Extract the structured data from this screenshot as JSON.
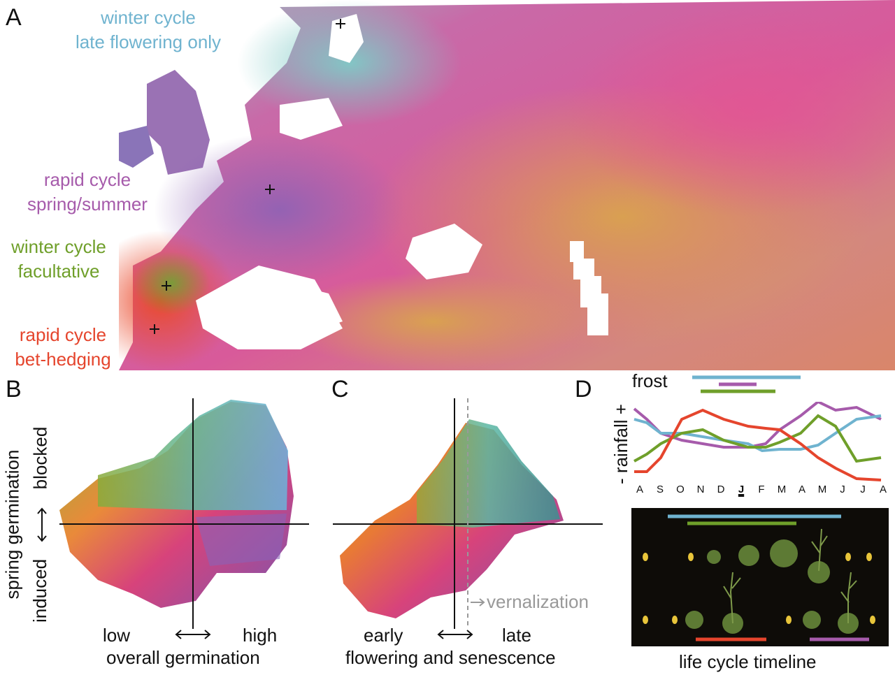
{
  "panels": {
    "a": "A",
    "b": "B",
    "c": "C",
    "d": "D"
  },
  "map": {
    "labels": [
      {
        "line1": "winter cycle",
        "line2": "late flowering only",
        "color": "#6fb3cf"
      },
      {
        "line1": "rapid cycle",
        "line2": "spring/summer",
        "color": "#a65bab"
      },
      {
        "line1": "winter cycle",
        "line2": "facultative",
        "color": "#6f9f2a"
      },
      {
        "line1": "rapid cycle",
        "line2": "bet-hedging",
        "color": "#e5452d"
      }
    ]
  },
  "scatter_b": {
    "y_axis": {
      "top": "blocked",
      "bottom": "induced",
      "title": "spring germination"
    },
    "x_axis": {
      "left": "low",
      "right": "high",
      "title": "overall germination"
    }
  },
  "scatter_c": {
    "x_axis": {
      "left": "early",
      "right": "late",
      "title": "flowering and senescence"
    },
    "annotation": "vernalization"
  },
  "panel_d": {
    "frost_label": "frost",
    "rainfall_label": "- rainfall +",
    "months": [
      "A",
      "S",
      "O",
      "N",
      "D",
      "J",
      "F",
      "M",
      "A",
      "M",
      "J",
      "J",
      "A"
    ],
    "bold_month_index": 5,
    "timeline_label": "life cycle timeline",
    "colors": {
      "blue": "#6fb3cf",
      "purple": "#a65bab",
      "green": "#6f9f2a",
      "red": "#e5452d"
    }
  }
}
